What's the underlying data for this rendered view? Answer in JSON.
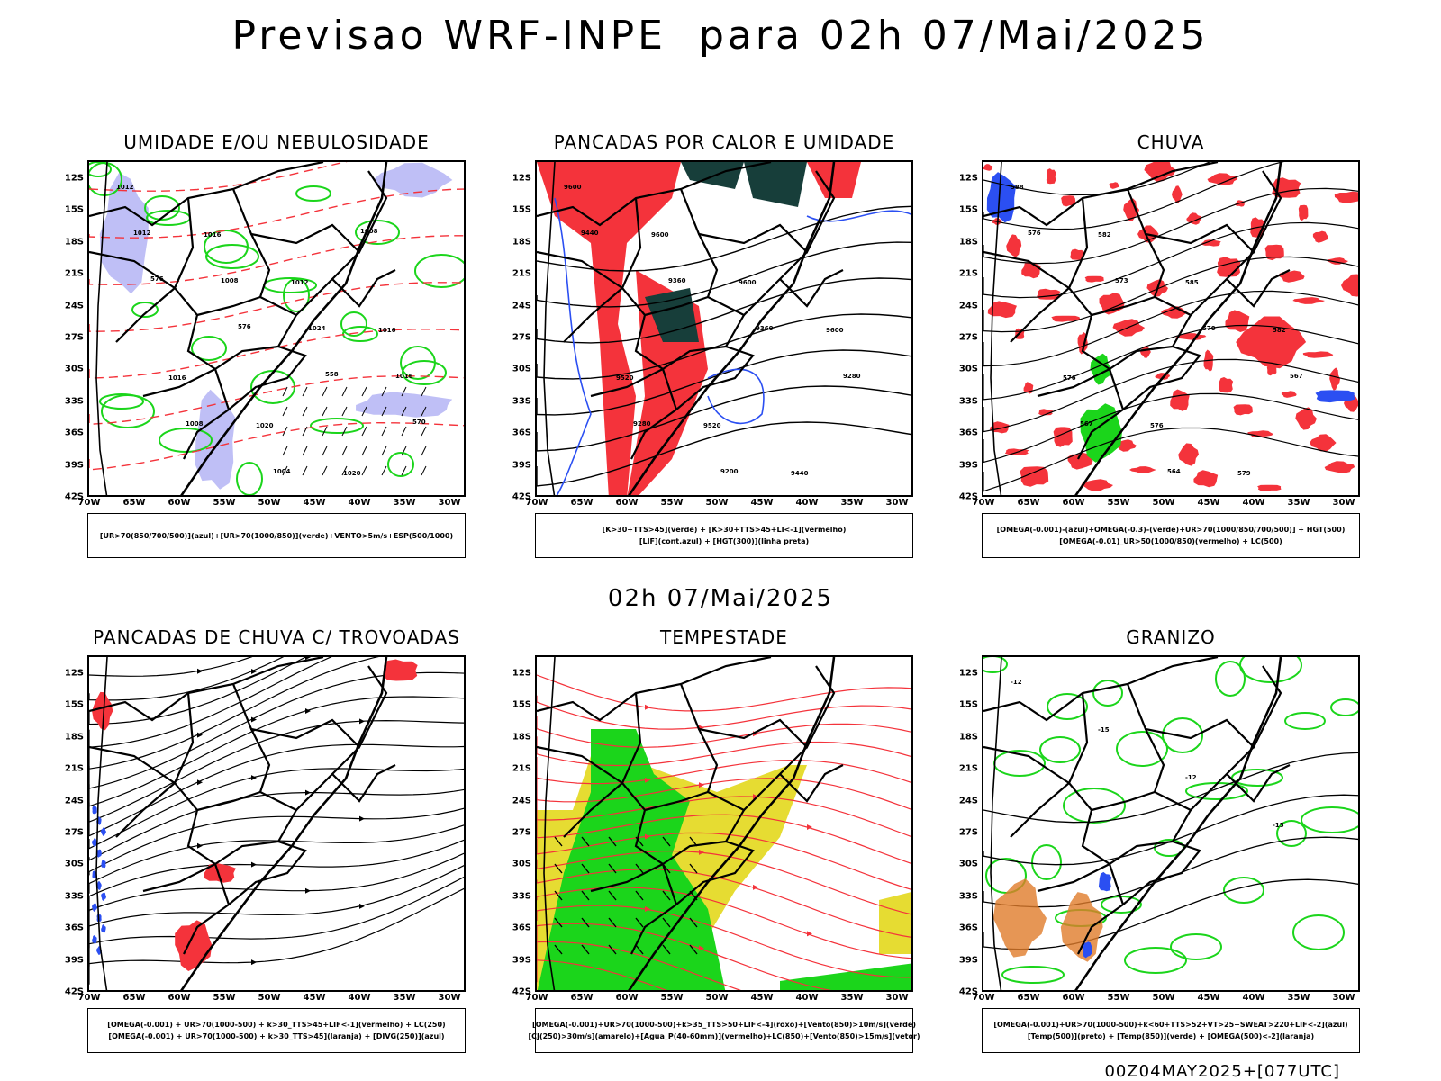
{
  "title": "Previsao WRF-INPE  para 02h 07/Mai/2025",
  "subtitle": "02h 07/Mai/2025",
  "footer": "00Z04MAY2025+[077UTC]",
  "lat_labels": [
    "12S",
    "15S",
    "18S",
    "21S",
    "24S",
    "27S",
    "30S",
    "33S",
    "36S",
    "39S",
    "42S"
  ],
  "lon_labels": [
    "70W",
    "65W",
    "60W",
    "55W",
    "50W",
    "45W",
    "40W",
    "35W",
    "30W"
  ],
  "colors": {
    "red": "#f4333b",
    "green": "#1bd51b",
    "blue": "#2b4ff2",
    "dark_teal": "#173e3a",
    "lavender": "#b4b4f4",
    "yellow": "#e6dc32",
    "orange": "#e07c2a",
    "black": "#000000"
  },
  "panels": [
    {
      "title": "UMIDADE E/OU NEBULOSIDADE",
      "legend": [
        "[UR>70(850/700/500)](azul)+[UR>70(1000/850)](verde)+VENTO>5m/s+ESP(500/1000)"
      ],
      "labels": [
        "1012",
        "1016",
        "1012",
        "1016",
        "1016",
        "1020",
        "1020",
        "1012",
        "1008",
        "1024",
        "1016",
        "1008",
        "1004",
        "1008",
        "576",
        "576",
        "558",
        "570"
      ]
    },
    {
      "title": "PANCADAS POR CALOR E UMIDADE",
      "legend": [
        "[K>30+TTS>45](verde) + [K>30+TTS>45+LI<-1](vermelho)",
        "[LIF](cont.azul) + [HGT(300)](linha preta)"
      ],
      "labels": [
        "9600",
        "9600",
        "9600",
        "9600",
        "9520",
        "9520",
        "9440",
        "9440",
        "9360",
        "9360",
        "9280",
        "9280",
        "9200"
      ]
    },
    {
      "title": "CHUVA",
      "legend": [
        "[OMEGA(-0.001)-(azul)+OMEGA(-0.3)-(verde)+UR>70(1000/850/700/500)] + HGT(500)",
        "[OMEGA(-0.01)_UR>50(1000/850)(vermelho) + LC(500)"
      ],
      "labels": [
        "588",
        "582",
        "585",
        "582",
        "576",
        "576",
        "579",
        "576",
        "573",
        "570",
        "567",
        "567",
        "564"
      ]
    },
    {
      "title": "PANCADAS DE CHUVA C/ TROVOADAS",
      "legend": [
        "[OMEGA(-0.001) + UR>70(1000-500) + k>30_TTS>45+LIF<-1](vermelho) + LC(250)",
        "[OMEGA(-0.001) + UR>70(1000-500) + k>30_TTS>45](laranja) + [DIVG(250)](azul)"
      ],
      "labels": []
    },
    {
      "title": "TEMPESTADE",
      "legend": [
        "[OMEGA(-0.001)+UR>70(1000-500)+k>35_TTS>50+LIF<-4](roxo)+[Vento(850)>10m/s](verde)",
        "[CJ(250)>30m/s](amarelo)+[Agua_P(40-60mm)](vermelho)+LC(850)+[Vento(850)>15m/s](vetor)"
      ],
      "labels": []
    },
    {
      "title": "GRANIZO",
      "legend": [
        "[OMEGA(-0.001)+UR>70(1000-500)+k<60+TTS>52+VT>25+SWEAT>220+LIF<-2](azul)",
        "[Temp(500)](preto) + [Temp(850)](verde) + [OMEGA(500)<-2](laranja)"
      ],
      "labels": [
        "-12",
        "-15",
        "-12",
        "-15"
      ]
    }
  ]
}
